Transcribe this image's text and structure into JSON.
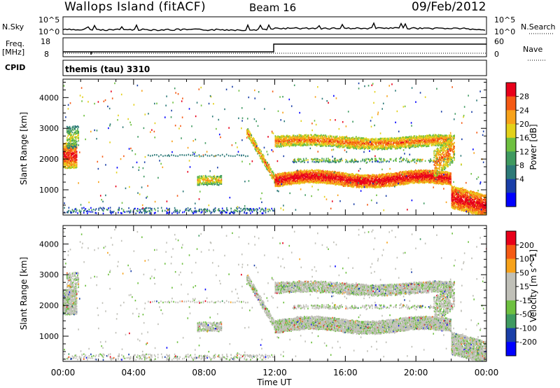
{
  "header": {
    "site": "Wallops Island (fitACF)",
    "beam": "Beam 16",
    "date": "09/Feb/2012"
  },
  "strip_labels": {
    "nsky": "N.Sky",
    "nsky_top": "10^5",
    "nsky_bottom": "10^0",
    "nsearch": "N.Search",
    "nsearch_top": "10^5",
    "nsearch_bottom": "10^0",
    "freq_line1": "Freq.",
    "freq_line2": "[MHz]",
    "freq_top": "18",
    "freq_bottom": "8",
    "nave_top": "60",
    "nave_bottom": "0",
    "nave": "Nave",
    "cpid": "CPID",
    "cpid_value": "themis (tau) 3310"
  },
  "colors": {
    "power": [
      "#0000ff",
      "#1a3fa8",
      "#2d7a78",
      "#3f9a60",
      "#6ec040",
      "#e3d11a",
      "#f7a21a",
      "#f55a14",
      "#e8001a"
    ],
    "velocity": [
      "#e8001a",
      "#f55a14",
      "#f7a21a",
      "#c0c0b8",
      "#c0c0b8",
      "#6ec040",
      "#3f9a60",
      "#1a3fa8",
      "#0000ff"
    ],
    "gray": "#c0c0b8"
  },
  "chart_data": [
    {
      "type": "heatmap",
      "title": "Power",
      "ylabel": "Slant Range [km]",
      "xlabel": "",
      "x_ticks": [
        "00:00",
        "04:00",
        "08:00",
        "12:00",
        "16:00",
        "20:00",
        "00:00"
      ],
      "xlim_hours": [
        0,
        24
      ],
      "y_ticks": [
        1000,
        2000,
        3000,
        4000
      ],
      "ylim": [
        180,
        4600
      ],
      "colorbar": {
        "label": "Power [dB]",
        "ticks": [
          "4",
          "8",
          "12",
          "16",
          "20",
          "24",
          "28"
        ],
        "range": [
          0,
          30
        ]
      },
      "features": [
        {
          "t0": 0.0,
          "t1": 0.8,
          "r0": 1500,
          "r1": 3100,
          "level": "high"
        },
        {
          "t0": 7.5,
          "t1": 9.0,
          "r0": 1100,
          "r1": 1500,
          "level": "medium"
        },
        {
          "t0": 10.5,
          "t1": 12.0,
          "r0": 1200,
          "r1": 2900,
          "level": "high"
        },
        {
          "t0": 12.0,
          "t1": 22.0,
          "r0": 1150,
          "r1": 1550,
          "level": "high"
        },
        {
          "t0": 12.0,
          "t1": 22.0,
          "r0": 2350,
          "r1": 2800,
          "level": "high"
        },
        {
          "t0": 22.0,
          "t1": 24.0,
          "r0": 200,
          "r1": 1200,
          "level": "high"
        }
      ]
    },
    {
      "type": "heatmap",
      "title": "Velocity",
      "ylabel": "Slant Range [km]",
      "xlabel": "Time UT",
      "x_ticks": [
        "00:00",
        "04:00",
        "08:00",
        "12:00",
        "16:00",
        "20:00",
        "00:00"
      ],
      "xlim_hours": [
        0,
        24
      ],
      "y_ticks": [
        1000,
        2000,
        3000,
        4000
      ],
      "ylim": [
        180,
        4600
      ],
      "colorbar": {
        "label": "Velocity [m s^-1]",
        "ticks": [
          "200",
          "100",
          "50",
          "15",
          "-15",
          "-50",
          "-100",
          "-200"
        ]
      }
    }
  ]
}
